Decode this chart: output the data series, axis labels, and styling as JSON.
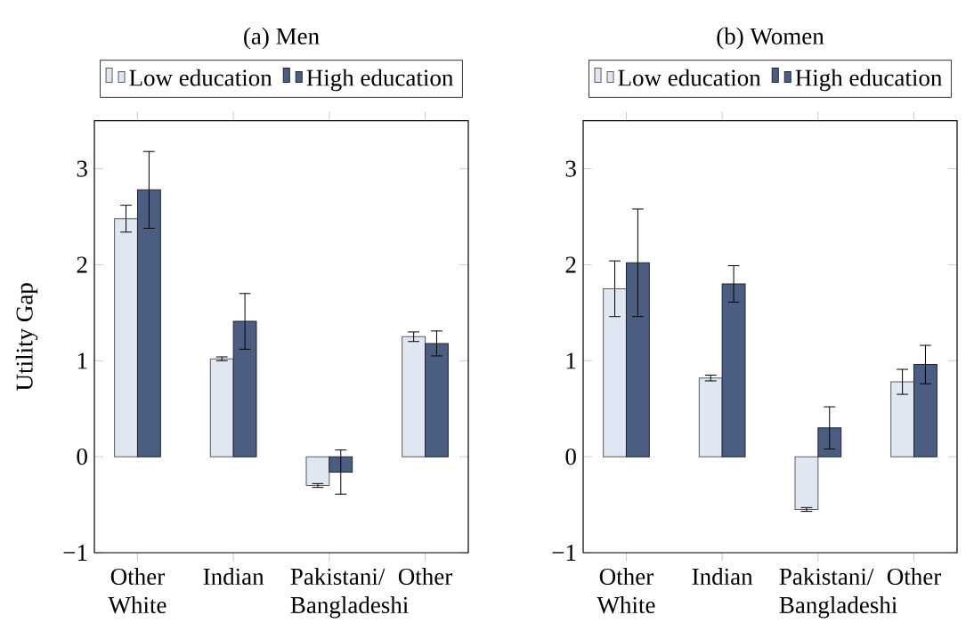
{
  "chart_data": [
    {
      "type": "bar",
      "title": "(a) Men",
      "ylabel": "Utility Gap",
      "categories": [
        "Other White",
        "Indian",
        "Pakistani/ Bangladeshi",
        "Other"
      ],
      "series": [
        {
          "name": "Low education",
          "color": "#e0e7f2",
          "values": [
            2.48,
            1.02,
            -0.3,
            1.25
          ],
          "errors": [
            0.14,
            0.02,
            0.02,
            0.05
          ]
        },
        {
          "name": "High education",
          "color": "#4b5d81",
          "values": [
            2.78,
            1.41,
            -0.16,
            1.18
          ],
          "errors": [
            0.4,
            0.29,
            0.23,
            0.13
          ]
        }
      ],
      "ylim": [
        -1,
        3.5
      ],
      "yticks": [
        {
          "value": -1,
          "label": "−1"
        },
        0,
        1,
        2,
        3
      ],
      "legend": "top"
    },
    {
      "type": "bar",
      "title": "(b) Women",
      "categories": [
        "Other White",
        "Indian",
        "Pakistani/ Bangladeshi",
        "Other"
      ],
      "series": [
        {
          "name": "Low education",
          "color": "#e0e7f2",
          "values": [
            1.75,
            0.82,
            -0.55,
            0.78
          ],
          "errors": [
            0.29,
            0.03,
            0.02,
            0.13
          ]
        },
        {
          "name": "High education",
          "color": "#4b5d81",
          "values": [
            2.02,
            1.8,
            0.3,
            0.96
          ],
          "errors": [
            0.56,
            0.19,
            0.22,
            0.2
          ]
        }
      ],
      "ylim": [
        -1,
        3.5
      ],
      "yticks": [
        {
          "value": -1,
          "label": "−1"
        },
        0,
        1,
        2,
        3
      ],
      "legend": "top"
    }
  ]
}
